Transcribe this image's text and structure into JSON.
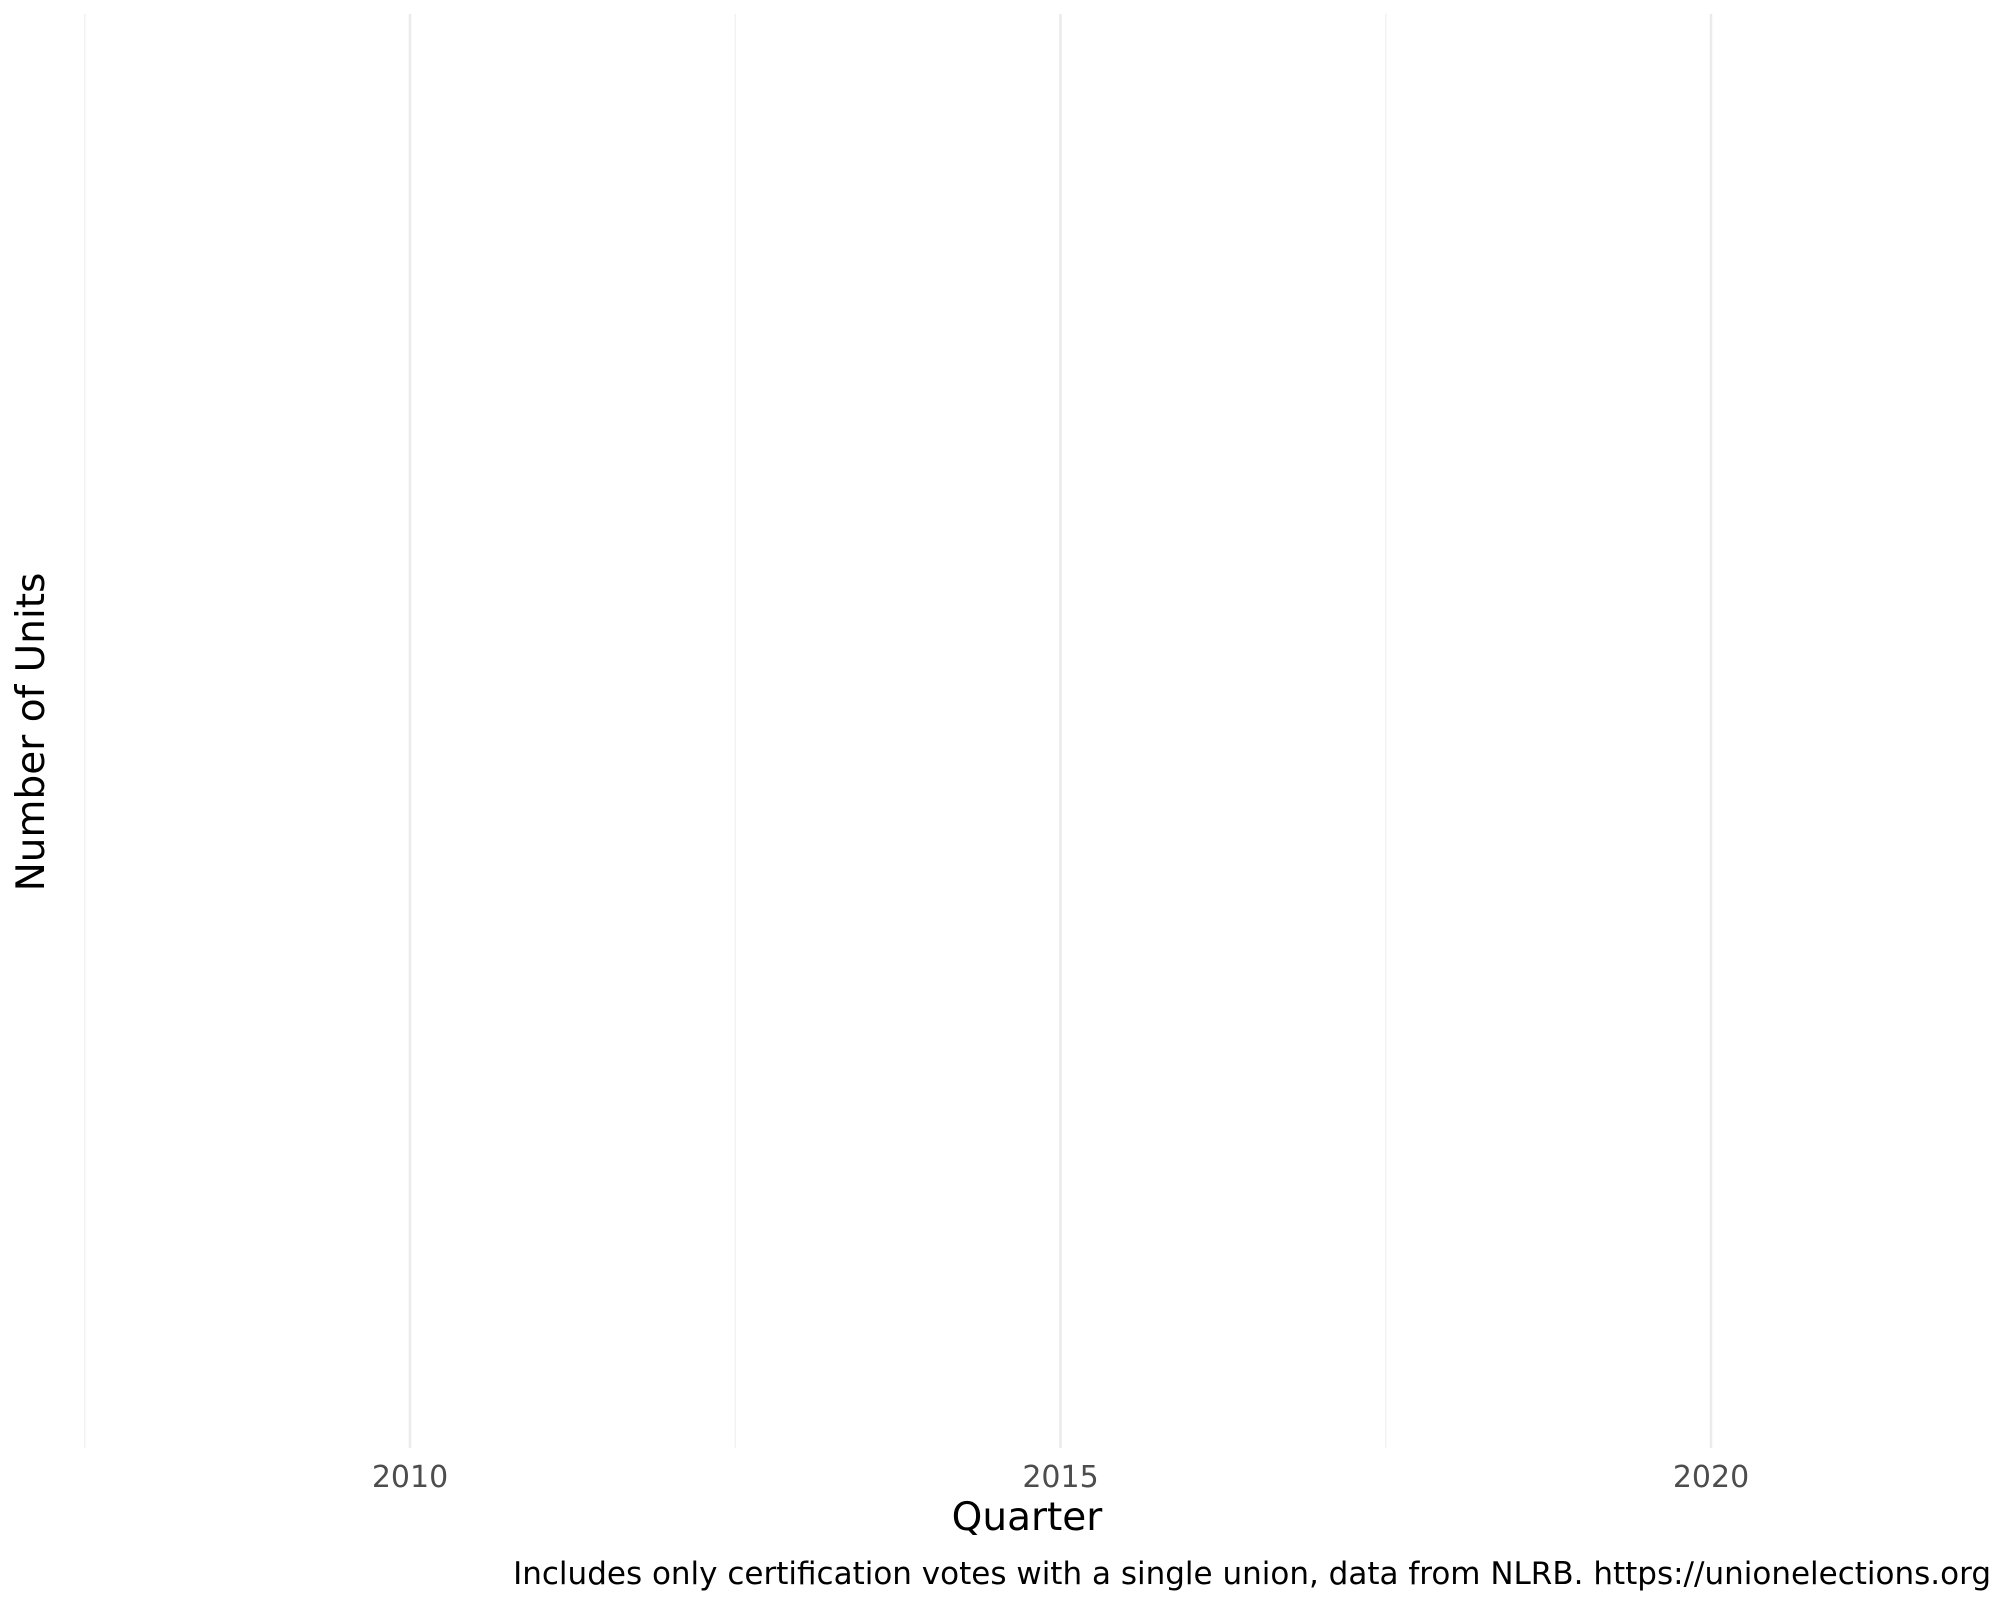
{
  "chart_data": {
    "type": "line",
    "title": "",
    "xlabel": "Quarter",
    "ylabel": "Number of Units",
    "caption": "Includes only certification votes with a single union, data from NLRB. https://unionelections.org",
    "x_major_ticks": [
      2010,
      2015,
      2020
    ],
    "x_minor_ticks": [
      2007.5,
      2012.5,
      2017.5
    ],
    "xlim": [
      2007.5,
      2021.9
    ],
    "y_ticks": [],
    "grid": true,
    "series": []
  }
}
